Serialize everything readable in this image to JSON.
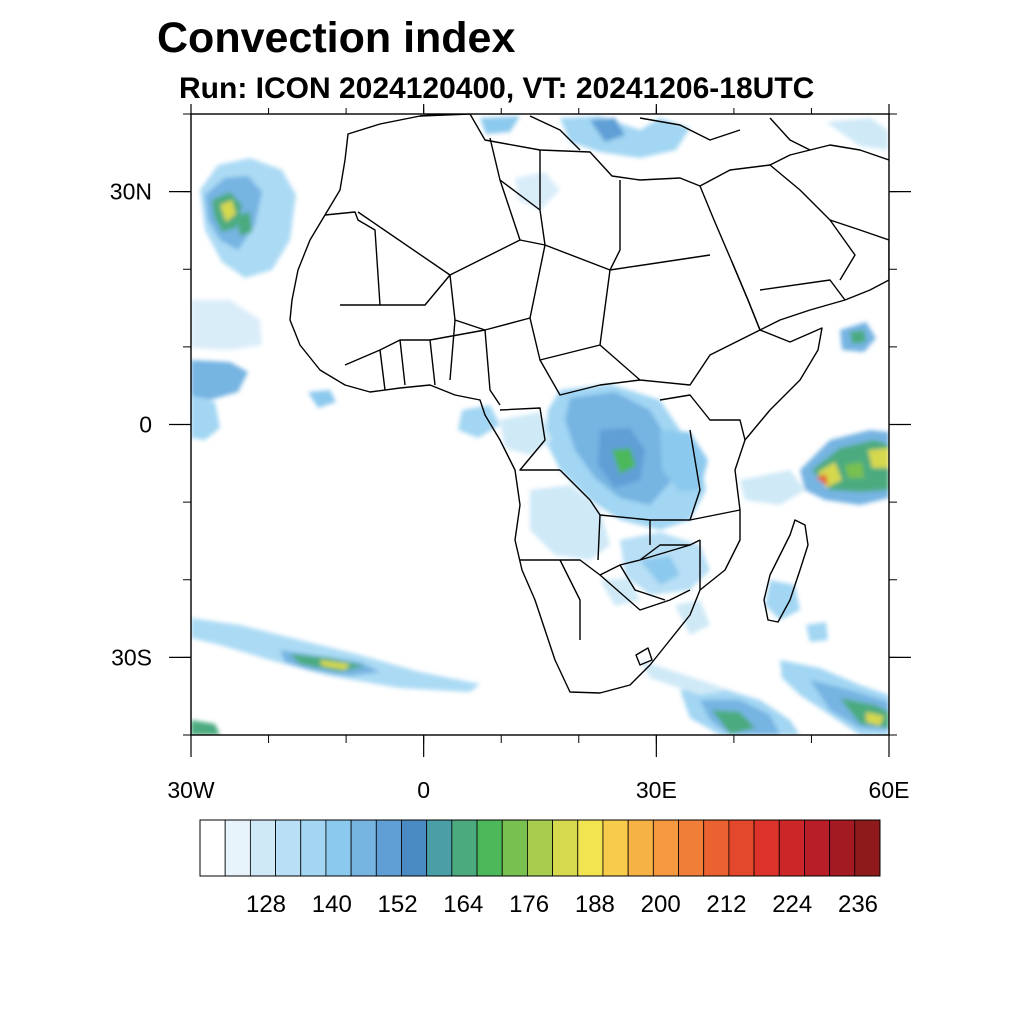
{
  "title": "Convection index",
  "subtitle": "Run: ICON 2024120400,  VT: 20241206-18UTC",
  "map": {
    "lon_range": [
      -30,
      60
    ],
    "lat_range": [
      -40,
      40
    ],
    "lon_ticks": [
      {
        "value": -30,
        "label": "30W"
      },
      {
        "value": 0,
        "label": "0"
      },
      {
        "value": 30,
        "label": "30E"
      },
      {
        "value": 60,
        "label": "60E"
      }
    ],
    "lat_ticks": [
      {
        "value": 30,
        "label": "30N"
      },
      {
        "value": 0,
        "label": "0"
      },
      {
        "value": -30,
        "label": "30S"
      }
    ]
  },
  "colorbar": {
    "colors": [
      "#ffffff",
      "#e8f4fb",
      "#cfe9f7",
      "#b8dff5",
      "#a2d6f3",
      "#8cc9ee",
      "#76b4e2",
      "#5f9fd6",
      "#4a8bc4",
      "#4a9ea6",
      "#4bab7f",
      "#4cb85a",
      "#78c04f",
      "#a8cc4e",
      "#d6d84e",
      "#f2e350",
      "#f7cb4b",
      "#f7b246",
      "#f59840",
      "#f07d38",
      "#ea6230",
      "#e4482c",
      "#dc3229",
      "#cb2628",
      "#b81e27",
      "#a41a23",
      "#8f1a1c"
    ],
    "labels": [
      "128",
      "140",
      "152",
      "164",
      "176",
      "188",
      "200",
      "212",
      "224",
      "236"
    ]
  }
}
